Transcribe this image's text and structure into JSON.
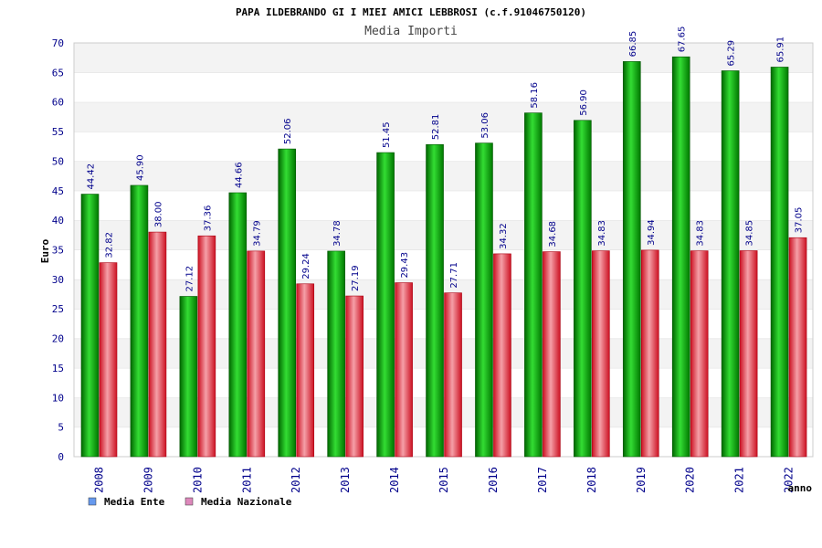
{
  "chart_data": {
    "type": "bar",
    "title": "PAPA ILDEBRANDO GI I MIEI AMICI LEBBROSI (c.f.91046750120)",
    "subtitle": "Media Importi",
    "ylabel": "Euro",
    "xlabel": "anno",
    "ylim": [
      0,
      70
    ],
    "ytick_step": 5,
    "grid": true,
    "legend_position": "bottom-left",
    "categories": [
      "2008",
      "2009",
      "2010",
      "2011",
      "2012",
      "2013",
      "2014",
      "2015",
      "2016",
      "2017",
      "2018",
      "2019",
      "2020",
      "2021",
      "2022"
    ],
    "series": [
      {
        "name": "Media Ente",
        "color": "#00aa00",
        "legend_color": "#6699ee",
        "values": [
          44.42,
          45.9,
          27.12,
          44.66,
          52.06,
          34.78,
          51.45,
          52.81,
          53.06,
          58.16,
          56.9,
          66.85,
          67.65,
          65.29,
          65.91
        ],
        "labels": [
          "44.42",
          "45.90",
          "27.12",
          "44.66",
          "52.06",
          "34.78",
          "51.45",
          "52.81",
          "53.06",
          "58.16",
          "56.90",
          "66.85",
          "67.65",
          "65.29",
          "65.91"
        ]
      },
      {
        "name": "Media Nazionale",
        "color": "#dd2233",
        "legend_color": "#dd88bb",
        "values": [
          32.82,
          38.0,
          37.36,
          34.79,
          29.24,
          27.19,
          29.43,
          27.71,
          34.32,
          34.68,
          34.83,
          34.94,
          34.83,
          34.85,
          37.05
        ],
        "labels": [
          "32.82",
          "38.00",
          "37.36",
          "34.79",
          "29.24",
          "27.19",
          "29.43",
          "27.71",
          "34.32",
          "34.68",
          "34.83",
          "34.94",
          "34.83",
          "34.85",
          "37.05"
        ]
      }
    ]
  }
}
